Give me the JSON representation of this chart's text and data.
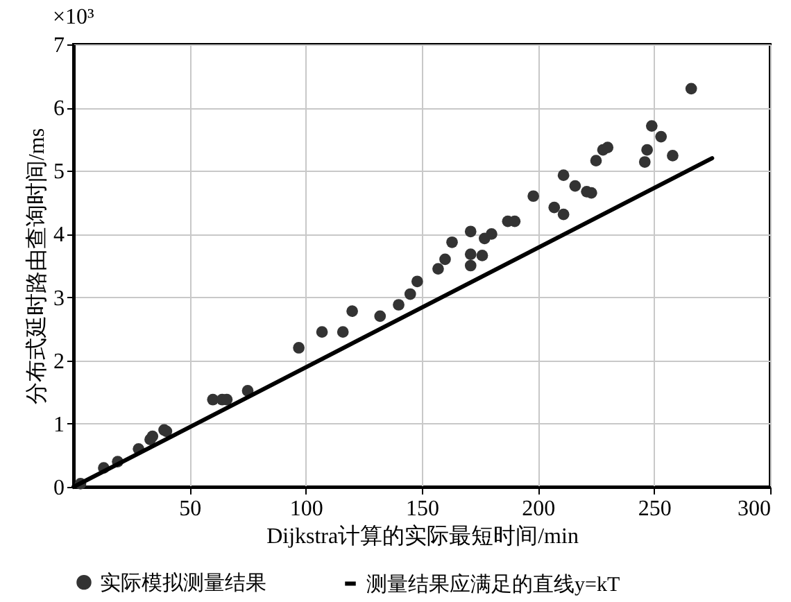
{
  "chart_data": {
    "type": "scatter",
    "xlabel": "Dijkstra计算的实际最短时间/min",
    "ylabel": "分布式延时路由查询时间/ms",
    "annotations": [
      "×10³"
    ],
    "xlim": [
      0,
      300
    ],
    "xticks": [
      50,
      100,
      150,
      200,
      250,
      300
    ],
    "ylim": [
      0,
      7
    ],
    "yticks": [
      0,
      1,
      2,
      3,
      4,
      5,
      6,
      7
    ],
    "grid": true,
    "legend": "bottom",
    "series": [
      {
        "name": "实际模拟测量结果",
        "color": "#333333",
        "marker": "circle",
        "x": [
          3,
          13,
          19,
          28,
          33,
          34,
          39,
          40,
          60,
          64,
          66,
          75,
          97,
          107,
          116,
          120,
          132,
          140,
          145,
          148,
          157,
          160,
          163,
          171,
          171,
          171,
          176,
          177,
          180,
          187,
          190,
          198,
          207,
          211,
          211,
          216,
          221,
          223,
          225,
          228,
          230,
          246,
          247,
          249,
          253,
          258,
          266
        ],
        "values": [
          0.05,
          0.3,
          0.4,
          0.6,
          0.75,
          0.8,
          0.9,
          0.88,
          1.38,
          1.38,
          1.38,
          1.52,
          2.2,
          2.45,
          2.45,
          2.78,
          2.7,
          2.88,
          3.05,
          3.25,
          3.45,
          3.6,
          3.87,
          4.04,
          3.68,
          3.5,
          3.66,
          3.93,
          4.0,
          4.2,
          4.2,
          4.6,
          4.42,
          4.31,
          4.93,
          4.76,
          4.67,
          4.65,
          5.16,
          5.33,
          5.37,
          5.14,
          5.33,
          5.71,
          5.54,
          5.24,
          6.3
        ]
      },
      {
        "name": "测量结果应满足的直线y=kT",
        "color": "#000000",
        "type": "line",
        "x": [
          0,
          275
        ],
        "values": [
          0,
          5.2
        ]
      }
    ]
  }
}
